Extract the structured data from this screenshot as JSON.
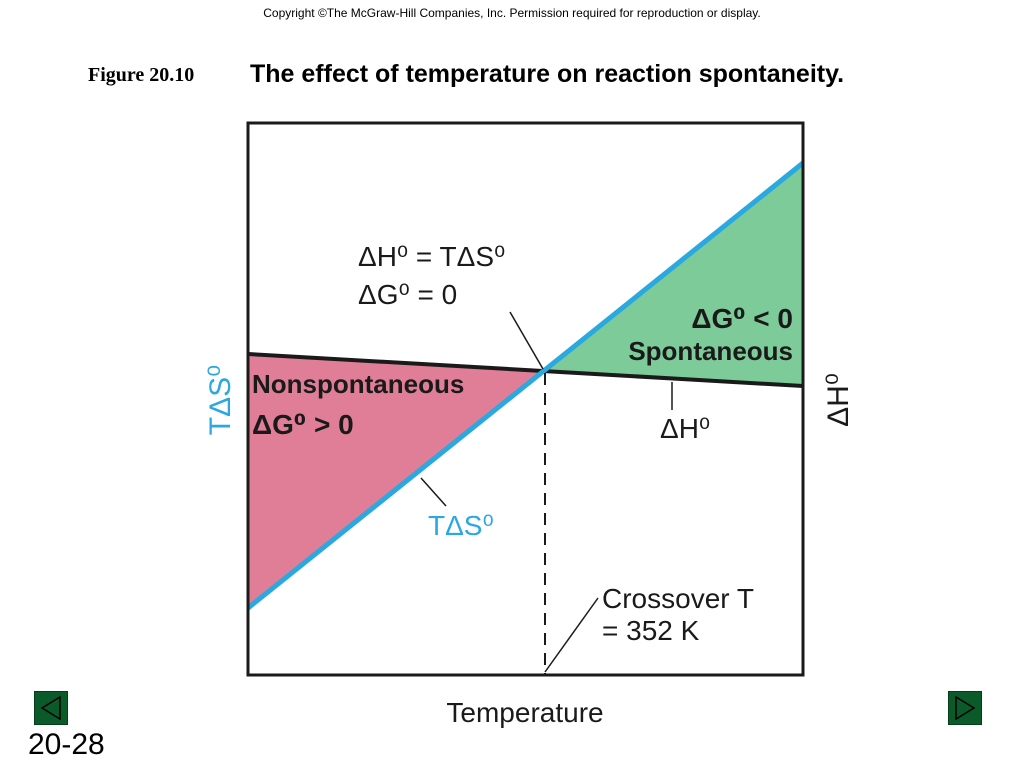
{
  "header": {
    "copyright": "Copyright ©The McGraw-Hill Companies, Inc.  Permission required for reproduction or display.",
    "figure_number": "Figure 20.10",
    "figure_title": "The effect of temperature on reaction spontaneity."
  },
  "diagram": {
    "equilibrium_label_line1": "ΔH⁰ = TΔS⁰",
    "equilibrium_label_line2": "ΔG⁰ = 0",
    "spontaneous_label_line1": "ΔG⁰ < 0",
    "spontaneous_label_line2": "Spontaneous",
    "nonspontaneous_label_line1": "Nonspontaneous",
    "nonspontaneous_label_line2": "ΔG⁰ > 0",
    "dH_curve_label": "ΔH⁰",
    "TdS_curve_label": "TΔS⁰",
    "crossover_label_line1": "Crossover T",
    "crossover_label_line2": "=  352 K",
    "left_axis_label": "TΔS⁰",
    "right_axis_label": "ΔH⁰",
    "x_axis_label": "Temperature",
    "colors": {
      "spontaneous_fill": "#7dcb98",
      "nonspontaneous_fill": "#e07e98",
      "TdS_line": "#2aa8e0",
      "dH_line": "#1a1a1a"
    }
  },
  "footer": {
    "slide_number": "20-28",
    "prev_button": "previous-slide",
    "next_button": "next-slide"
  }
}
